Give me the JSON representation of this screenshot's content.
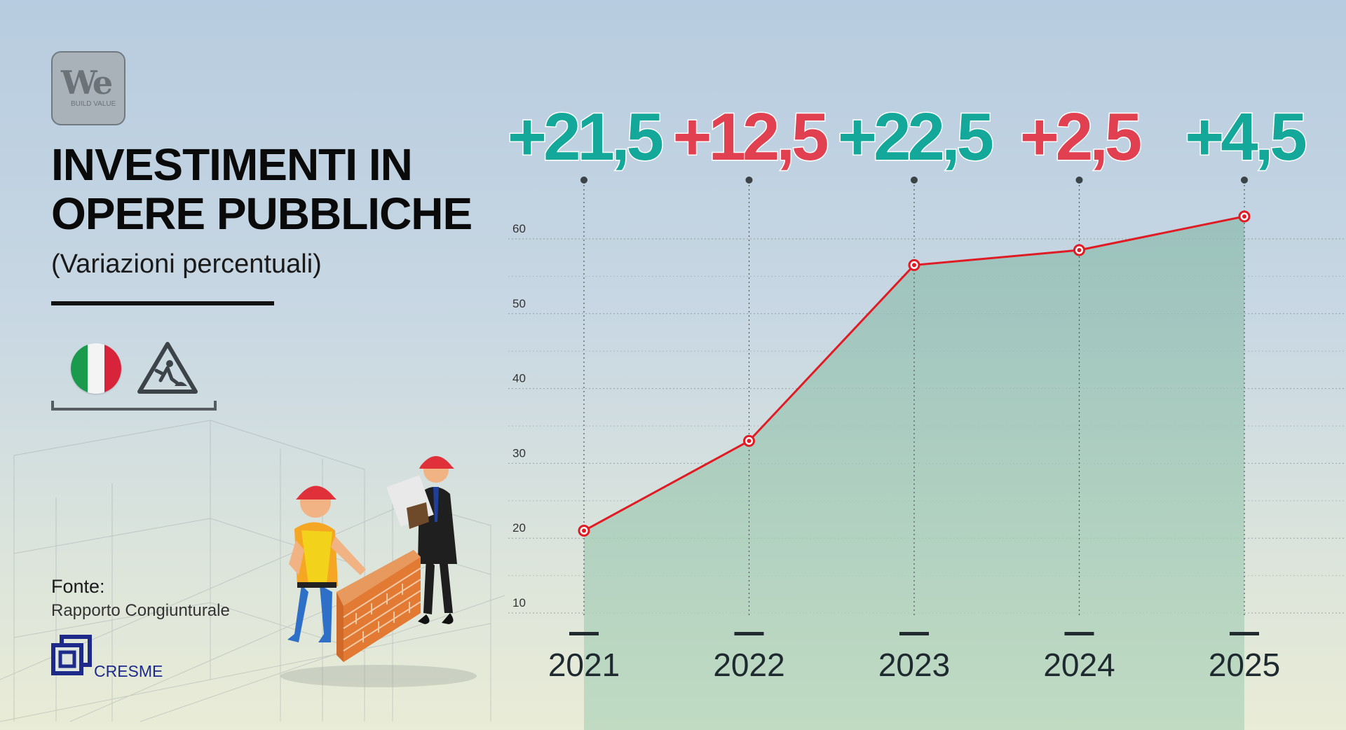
{
  "logo": {
    "main": "We",
    "sub": "BUILD VALUE"
  },
  "header": {
    "title_line1": "INVESTIMENTI IN",
    "title_line2": "OPERE PUBBLICHE",
    "subtitle": "(Variazioni percentuali)"
  },
  "icons": {
    "flag": "italy-flag-icon",
    "roadworks": "roadworks-sign-icon"
  },
  "source": {
    "label": "Fonte:",
    "text": "Rapporto Congiunturale",
    "org": "CRESME"
  },
  "colors": {
    "positive": "#14a89a",
    "negative": "#e0404f",
    "line": "#e01b24",
    "area": "#9cc6b8"
  },
  "chart_data": {
    "type": "area",
    "x": [
      "2021",
      "2022",
      "2023",
      "2024",
      "2025"
    ],
    "values": [
      21,
      33,
      56.5,
      58.5,
      63
    ],
    "ylim": [
      10,
      60
    ],
    "yticks": [
      10,
      20,
      30,
      40,
      50,
      60
    ],
    "grid": true,
    "annotations": [
      {
        "x": "2021",
        "text": "+21,5",
        "tone": "positive"
      },
      {
        "x": "2022",
        "text": "+12,5",
        "tone": "negative"
      },
      {
        "x": "2023",
        "text": "+22,5",
        "tone": "positive"
      },
      {
        "x": "2024",
        "text": "+2,5",
        "tone": "negative"
      },
      {
        "x": "2025",
        "text": "+4,5",
        "tone": "positive"
      }
    ]
  }
}
